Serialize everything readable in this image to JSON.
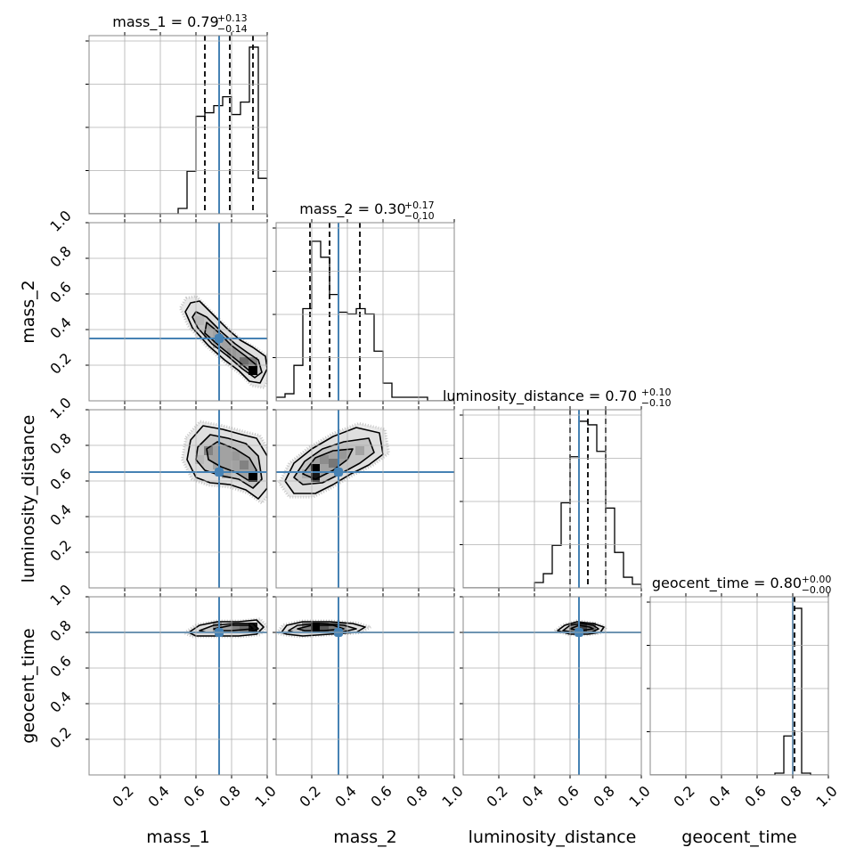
{
  "chart_data": {
    "type": "corner",
    "params": [
      "mass_1",
      "mass_2",
      "luminosity_distance",
      "geocent_time"
    ],
    "axis_range": [
      0,
      1
    ],
    "ticks": [
      0.2,
      0.4,
      0.6,
      0.8,
      1.0
    ],
    "tick_labels": [
      "0.2",
      "0.4",
      "0.6",
      "0.8",
      "1.0"
    ],
    "grid": true,
    "colors": {
      "truth": "#4682b4",
      "hist": "#000000",
      "quantile": "#000000",
      "density": "#000000"
    },
    "truths": [
      0.73,
      0.35,
      0.65,
      0.8
    ],
    "marginals": [
      {
        "param": "mass_1",
        "title_main": "mass_1 = 0.79",
        "title_plus": "+0.13",
        "title_minus": "−0.14",
        "median": 0.79,
        "quantiles": [
          0.65,
          0.79,
          0.92
        ],
        "bin_edges": [
          0.5,
          0.55,
          0.6,
          0.65,
          0.7,
          0.75,
          0.8,
          0.85,
          0.9,
          0.95,
          1.0
        ],
        "counts": [
          0.03,
          0.24,
          0.55,
          0.57,
          0.61,
          0.66,
          0.56,
          0.63,
          0.94,
          0.2
        ]
      },
      {
        "param": "mass_2",
        "title_main": "mass_2 = 0.30",
        "title_plus": "+0.17",
        "title_minus": "−0.10",
        "median": 0.3,
        "quantiles": [
          0.19,
          0.3,
          0.47
        ],
        "bin_edges": [
          0.0,
          0.05,
          0.1,
          0.15,
          0.2,
          0.25,
          0.3,
          0.35,
          0.4,
          0.45,
          0.5,
          0.55,
          0.6,
          0.65,
          0.7,
          0.75,
          0.8,
          0.85
        ],
        "counts": [
          0.02,
          0.04,
          0.2,
          0.52,
          0.9,
          0.81,
          0.6,
          0.5,
          0.49,
          0.52,
          0.49,
          0.28,
          0.1,
          0.02,
          0.02,
          0.02,
          0.02
        ]
      },
      {
        "param": "luminosity_distance",
        "title_main": "luminosity_distance = 0.70",
        "title_plus": "+0.10",
        "title_minus": "−0.10",
        "median": 0.7,
        "quantiles": [
          0.6,
          0.7,
          0.8
        ],
        "bin_edges": [
          0.4,
          0.45,
          0.5,
          0.55,
          0.6,
          0.65,
          0.7,
          0.75,
          0.8,
          0.85,
          0.9,
          0.95,
          1.0
        ],
        "counts": [
          0.03,
          0.08,
          0.24,
          0.48,
          0.74,
          0.94,
          0.92,
          0.77,
          0.45,
          0.2,
          0.06,
          0.02
        ]
      },
      {
        "param": "geocent_time",
        "title_main": "geocent_time = 0.80",
        "title_plus": "+0.00",
        "title_minus": "−0.00",
        "median": 0.8,
        "quantiles": [
          0.8,
          0.8,
          0.81
        ],
        "bin_edges": [
          0.7,
          0.75,
          0.8,
          0.85,
          0.9
        ],
        "counts": [
          0.01,
          0.22,
          0.94,
          0.01
        ]
      }
    ],
    "contours": [
      {
        "x": "mass_1",
        "y": "mass_2",
        "levels": [
          [
            [
              0.57,
              0.55
            ],
            [
              0.62,
              0.56
            ],
            [
              0.69,
              0.49
            ],
            [
              0.78,
              0.4
            ],
            [
              0.85,
              0.34
            ],
            [
              0.92,
              0.3
            ],
            [
              0.99,
              0.25
            ],
            [
              1.0,
              0.18
            ],
            [
              0.96,
              0.1
            ],
            [
              0.9,
              0.11
            ],
            [
              0.84,
              0.17
            ],
            [
              0.76,
              0.23
            ],
            [
              0.67,
              0.31
            ],
            [
              0.58,
              0.41
            ],
            [
              0.54,
              0.5
            ]
          ],
          [
            [
              0.6,
              0.5
            ],
            [
              0.66,
              0.47
            ],
            [
              0.74,
              0.39
            ],
            [
              0.82,
              0.32
            ],
            [
              0.89,
              0.27
            ],
            [
              0.95,
              0.23
            ],
            [
              0.97,
              0.16
            ],
            [
              0.93,
              0.13
            ],
            [
              0.86,
              0.18
            ],
            [
              0.78,
              0.25
            ],
            [
              0.69,
              0.32
            ],
            [
              0.61,
              0.41
            ],
            [
              0.58,
              0.47
            ]
          ],
          [
            [
              0.66,
              0.44
            ],
            [
              0.72,
              0.39
            ],
            [
              0.8,
              0.31
            ],
            [
              0.88,
              0.25
            ],
            [
              0.94,
              0.2
            ],
            [
              0.91,
              0.16
            ],
            [
              0.84,
              0.22
            ],
            [
              0.74,
              0.3
            ],
            [
              0.65,
              0.38
            ]
          ]
        ],
        "cells": [
          [
            0.92,
            0.17,
            1.0
          ],
          [
            0.87,
            0.22,
            0.5
          ],
          [
            0.92,
            0.22,
            0.4
          ],
          [
            0.8,
            0.27,
            0.3
          ],
          [
            0.72,
            0.32,
            0.22
          ],
          [
            0.67,
            0.37,
            0.2
          ],
          [
            0.62,
            0.45,
            0.15
          ]
        ]
      },
      {
        "x": "mass_1",
        "y": "luminosity_distance",
        "levels": [
          [
            [
              0.57,
              0.83
            ],
            [
              0.64,
              0.91
            ],
            [
              0.75,
              0.89
            ],
            [
              0.86,
              0.86
            ],
            [
              0.94,
              0.84
            ],
            [
              1.0,
              0.74
            ],
            [
              1.0,
              0.56
            ],
            [
              0.95,
              0.5
            ],
            [
              0.88,
              0.55
            ],
            [
              0.79,
              0.58
            ],
            [
              0.68,
              0.59
            ],
            [
              0.6,
              0.62
            ],
            [
              0.55,
              0.72
            ]
          ],
          [
            [
              0.61,
              0.79
            ],
            [
              0.68,
              0.86
            ],
            [
              0.78,
              0.84
            ],
            [
              0.88,
              0.81
            ],
            [
              0.95,
              0.74
            ],
            [
              0.97,
              0.61
            ],
            [
              0.92,
              0.56
            ],
            [
              0.84,
              0.61
            ],
            [
              0.74,
              0.63
            ],
            [
              0.65,
              0.66
            ],
            [
              0.6,
              0.72
            ]
          ],
          [
            [
              0.66,
              0.78
            ],
            [
              0.72,
              0.82
            ],
            [
              0.82,
              0.78
            ],
            [
              0.9,
              0.73
            ],
            [
              0.94,
              0.66
            ],
            [
              0.9,
              0.6
            ],
            [
              0.82,
              0.65
            ],
            [
              0.74,
              0.68
            ],
            [
              0.67,
              0.72
            ]
          ]
        ],
        "cells": [
          [
            0.92,
            0.62,
            1.0
          ],
          [
            0.87,
            0.69,
            0.4
          ],
          [
            0.82,
            0.74,
            0.3
          ],
          [
            0.67,
            0.77,
            0.4
          ],
          [
            0.72,
            0.69,
            0.25
          ],
          [
            0.77,
            0.64,
            0.2
          ],
          [
            0.62,
            0.72,
            0.15
          ]
        ]
      },
      {
        "x": "mass_2",
        "y": "luminosity_distance",
        "levels": [
          [
            [
              0.05,
              0.6
            ],
            [
              0.1,
              0.7
            ],
            [
              0.2,
              0.78
            ],
            [
              0.32,
              0.85
            ],
            [
              0.45,
              0.9
            ],
            [
              0.58,
              0.87
            ],
            [
              0.6,
              0.75
            ],
            [
              0.52,
              0.69
            ],
            [
              0.42,
              0.64
            ],
            [
              0.32,
              0.58
            ],
            [
              0.22,
              0.53
            ],
            [
              0.1,
              0.53
            ]
          ],
          [
            [
              0.1,
              0.62
            ],
            [
              0.16,
              0.71
            ],
            [
              0.26,
              0.78
            ],
            [
              0.38,
              0.82
            ],
            [
              0.52,
              0.84
            ],
            [
              0.55,
              0.76
            ],
            [
              0.47,
              0.7
            ],
            [
              0.36,
              0.64
            ],
            [
              0.26,
              0.59
            ],
            [
              0.15,
              0.58
            ]
          ],
          [
            [
              0.15,
              0.64
            ],
            [
              0.22,
              0.73
            ],
            [
              0.32,
              0.77
            ],
            [
              0.43,
              0.78
            ],
            [
              0.4,
              0.72
            ],
            [
              0.32,
              0.66
            ],
            [
              0.22,
              0.61
            ]
          ]
        ],
        "cells": [
          [
            0.22,
            0.67,
            1.0
          ],
          [
            0.22,
            0.62,
            0.9
          ],
          [
            0.32,
            0.7,
            0.45
          ],
          [
            0.27,
            0.72,
            0.35
          ],
          [
            0.37,
            0.75,
            0.3
          ],
          [
            0.47,
            0.77,
            0.25
          ],
          [
            0.17,
            0.64,
            0.2
          ]
        ]
      },
      {
        "x": "mass_1",
        "y": "geocent_time",
        "levels": [
          [
            [
              0.56,
              0.8
            ],
            [
              0.62,
              0.84
            ],
            [
              0.72,
              0.86
            ],
            [
              0.84,
              0.86
            ],
            [
              0.94,
              0.87
            ],
            [
              0.98,
              0.83
            ],
            [
              0.94,
              0.79
            ],
            [
              0.84,
              0.78
            ],
            [
              0.7,
              0.78
            ],
            [
              0.6,
              0.78
            ]
          ],
          [
            [
              0.62,
              0.81
            ],
            [
              0.7,
              0.84
            ],
            [
              0.82,
              0.85
            ],
            [
              0.92,
              0.85
            ],
            [
              0.95,
              0.82
            ],
            [
              0.9,
              0.8
            ],
            [
              0.78,
              0.8
            ],
            [
              0.66,
              0.8
            ]
          ],
          [
            [
              0.7,
              0.82
            ],
            [
              0.8,
              0.84
            ],
            [
              0.9,
              0.84
            ],
            [
              0.92,
              0.82
            ],
            [
              0.8,
              0.81
            ],
            [
              0.72,
              0.81
            ]
          ]
        ],
        "cells": [
          [
            0.92,
            0.83,
            0.9
          ],
          [
            0.82,
            0.83,
            0.4
          ],
          [
            0.72,
            0.83,
            0.3
          ],
          [
            0.87,
            0.83,
            0.5
          ]
        ]
      },
      {
        "x": "mass_2",
        "y": "geocent_time",
        "levels": [
          [
            [
              0.03,
              0.8
            ],
            [
              0.06,
              0.84
            ],
            [
              0.15,
              0.86
            ],
            [
              0.3,
              0.86
            ],
            [
              0.43,
              0.85
            ],
            [
              0.5,
              0.83
            ],
            [
              0.45,
              0.8
            ],
            [
              0.3,
              0.79
            ],
            [
              0.15,
              0.78
            ],
            [
              0.06,
              0.79
            ]
          ],
          [
            [
              0.07,
              0.81
            ],
            [
              0.12,
              0.84
            ],
            [
              0.25,
              0.85
            ],
            [
              0.38,
              0.84
            ],
            [
              0.45,
              0.82
            ],
            [
              0.36,
              0.8
            ],
            [
              0.22,
              0.8
            ],
            [
              0.1,
              0.8
            ]
          ],
          [
            [
              0.12,
              0.82
            ],
            [
              0.2,
              0.84
            ],
            [
              0.32,
              0.84
            ],
            [
              0.38,
              0.82
            ],
            [
              0.27,
              0.81
            ],
            [
              0.16,
              0.81
            ]
          ]
        ],
        "cells": [
          [
            0.22,
            0.83,
            1.0
          ],
          [
            0.27,
            0.83,
            0.6
          ],
          [
            0.32,
            0.83,
            0.45
          ],
          [
            0.17,
            0.83,
            0.4
          ],
          [
            0.37,
            0.83,
            0.3
          ]
        ]
      },
      {
        "x": "luminosity_distance",
        "y": "geocent_time",
        "levels": [
          [
            [
              0.53,
              0.81
            ],
            [
              0.57,
              0.84
            ],
            [
              0.64,
              0.86
            ],
            [
              0.73,
              0.85
            ],
            [
              0.79,
              0.83
            ],
            [
              0.77,
              0.8
            ],
            [
              0.7,
              0.79
            ],
            [
              0.6,
              0.79
            ]
          ],
          [
            [
              0.56,
              0.81
            ],
            [
              0.6,
              0.84
            ],
            [
              0.66,
              0.85
            ],
            [
              0.73,
              0.84
            ],
            [
              0.76,
              0.82
            ],
            [
              0.72,
              0.8
            ],
            [
              0.63,
              0.8
            ]
          ],
          [
            [
              0.6,
              0.82
            ],
            [
              0.65,
              0.84
            ],
            [
              0.71,
              0.83
            ],
            [
              0.73,
              0.82
            ],
            [
              0.66,
              0.81
            ]
          ]
        ],
        "cells": [
          [
            0.67,
            0.83,
            0.7
          ],
          [
            0.72,
            0.83,
            0.45
          ],
          [
            0.62,
            0.83,
            0.35
          ]
        ]
      }
    ]
  }
}
